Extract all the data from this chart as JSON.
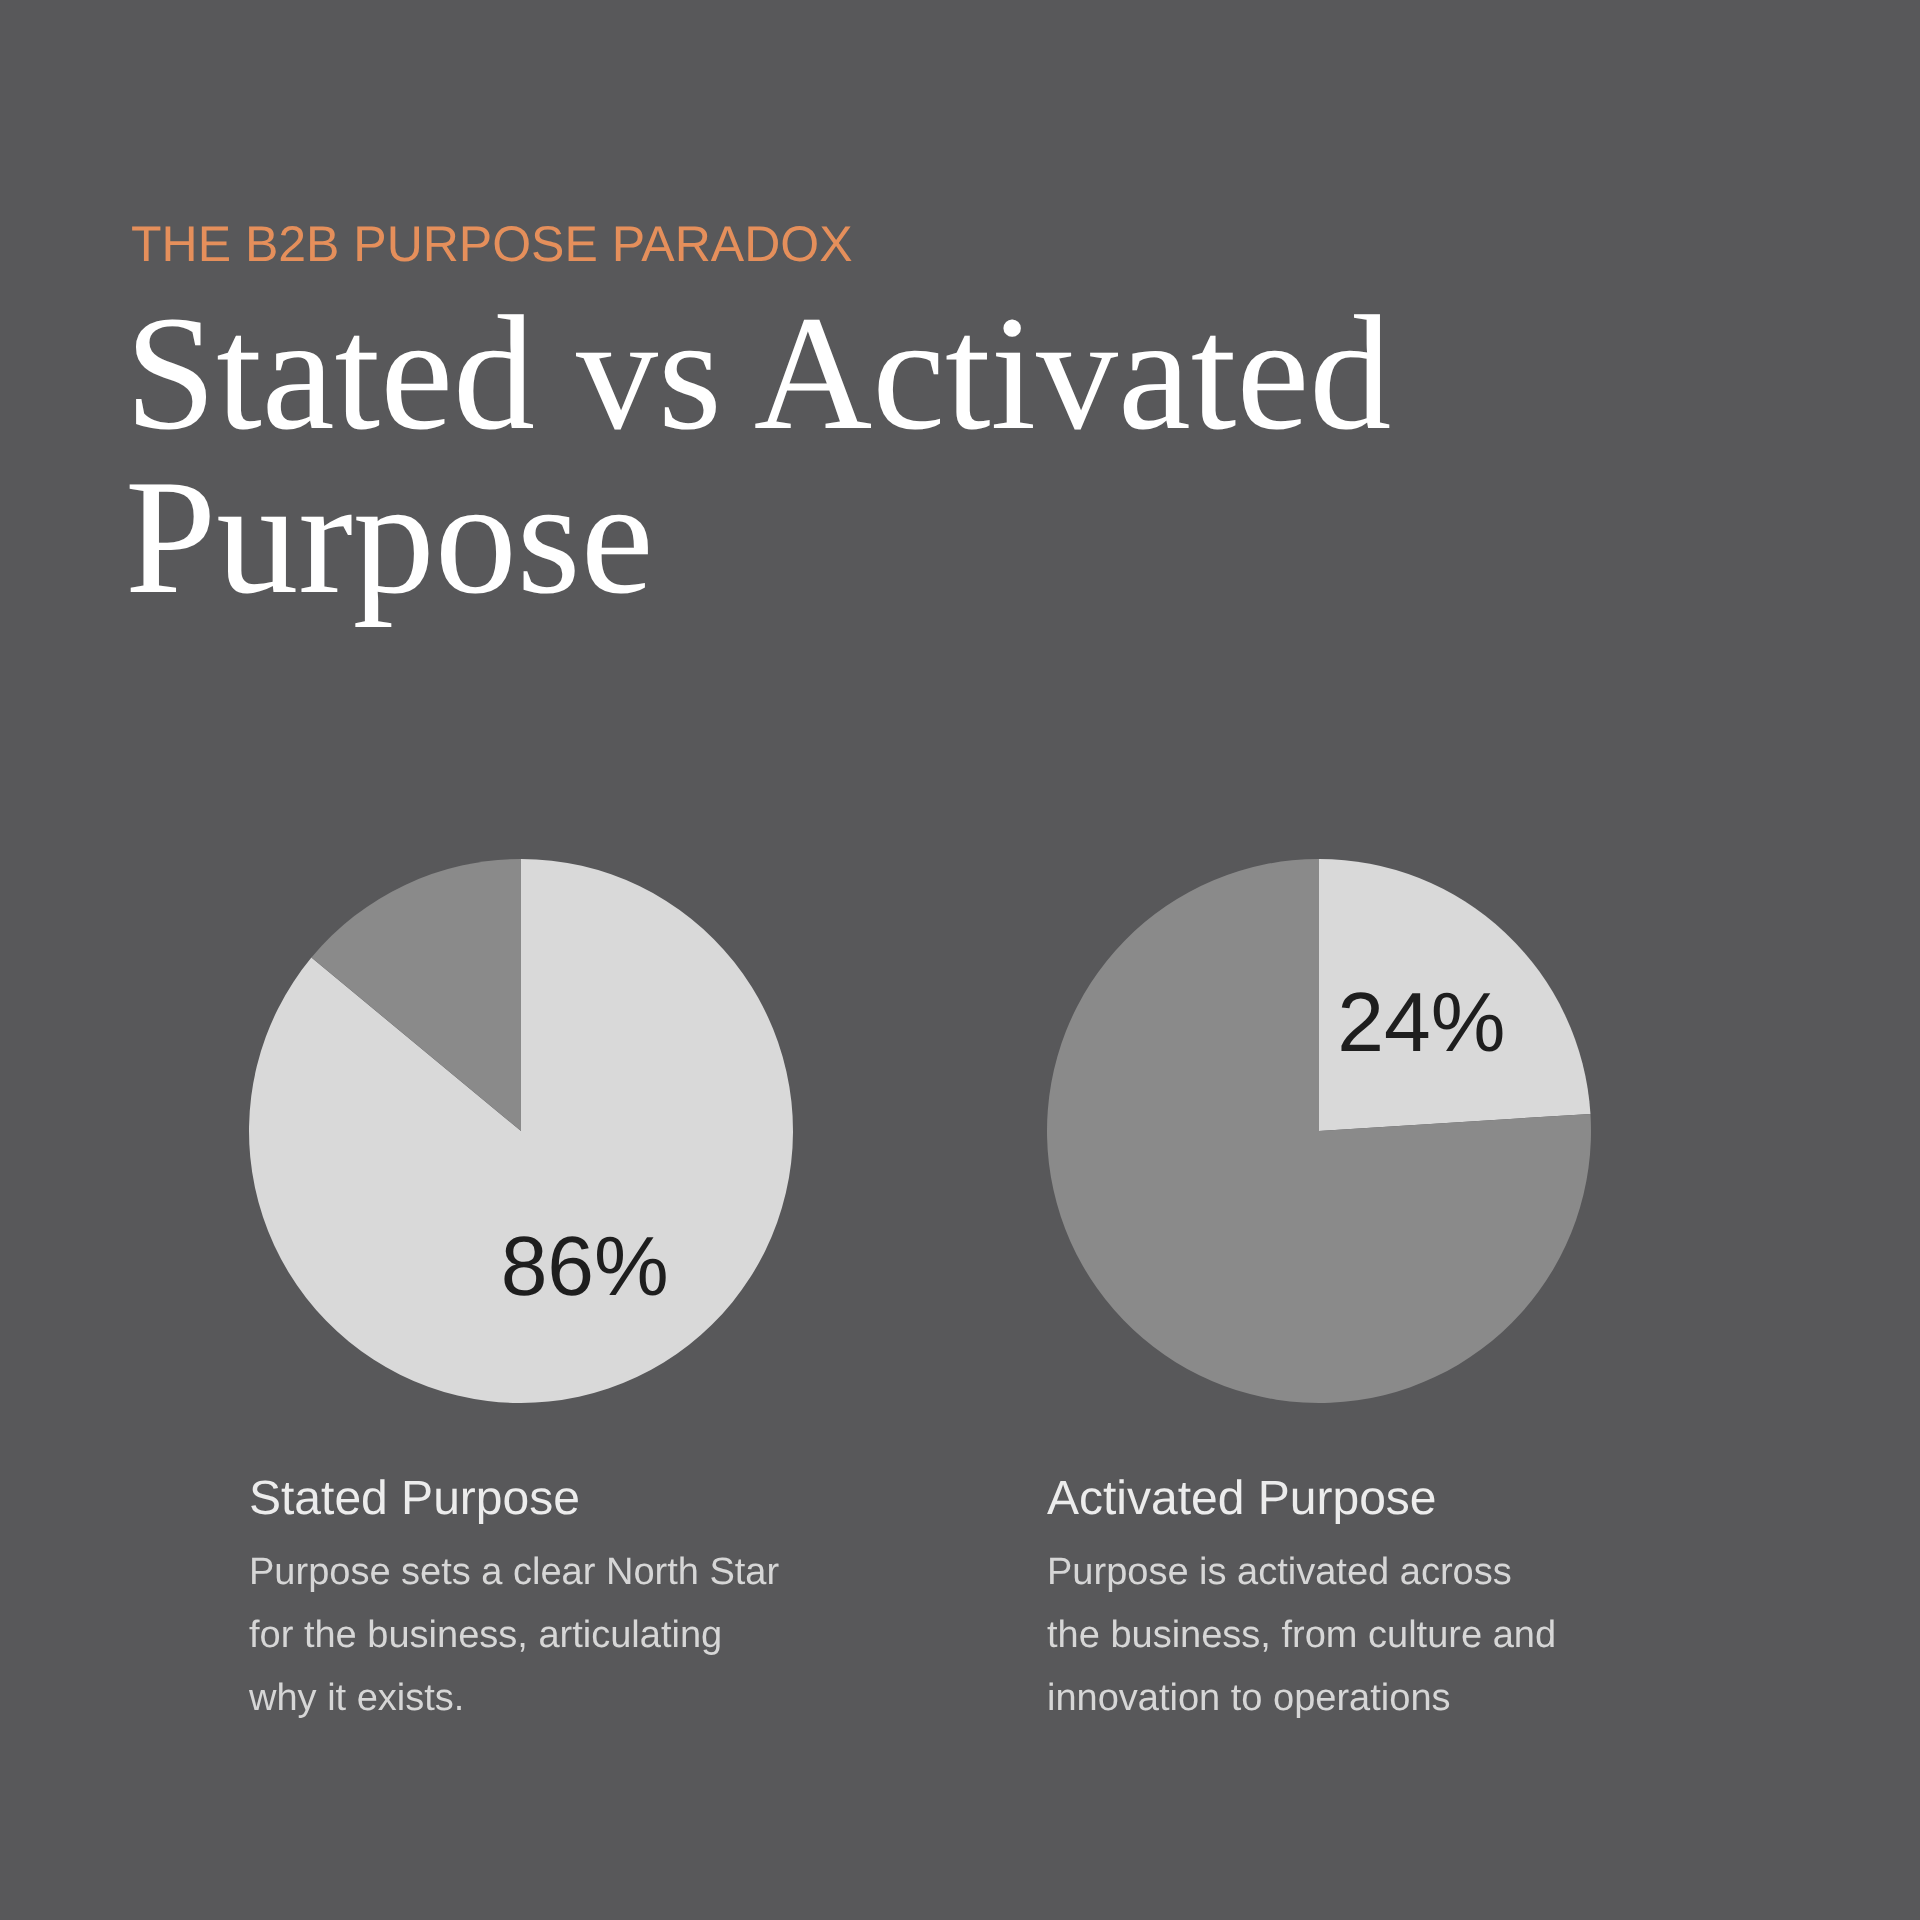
{
  "chart_data": [
    {
      "type": "other",
      "subtitle": "THE B2B PURPOSE PARADOX",
      "title": "Stated vs Activated Purpose"
    },
    {
      "type": "pie",
      "title": "Stated Purpose",
      "categories": [
        null,
        null
      ],
      "values": [
        86,
        14
      ],
      "colors": [
        "#d9d9d9",
        "#8a8a8a"
      ],
      "value_labels": [
        "86%",
        null
      ],
      "annotations": [
        "Purpose sets a clear North Star\nfor the business, articulating\nwhy it exists."
      ]
    },
    {
      "type": "pie",
      "title": "Activated Purpose",
      "categories": [
        null,
        null
      ],
      "values": [
        24,
        76
      ],
      "colors": [
        "#d9d9d9",
        "#8a8a8a"
      ],
      "value_labels": [
        "24%",
        null
      ],
      "annotations": [
        "Purpose is activated across\nthe business, from culture and\ninnovation to operations"
      ]
    }
  ]
}
